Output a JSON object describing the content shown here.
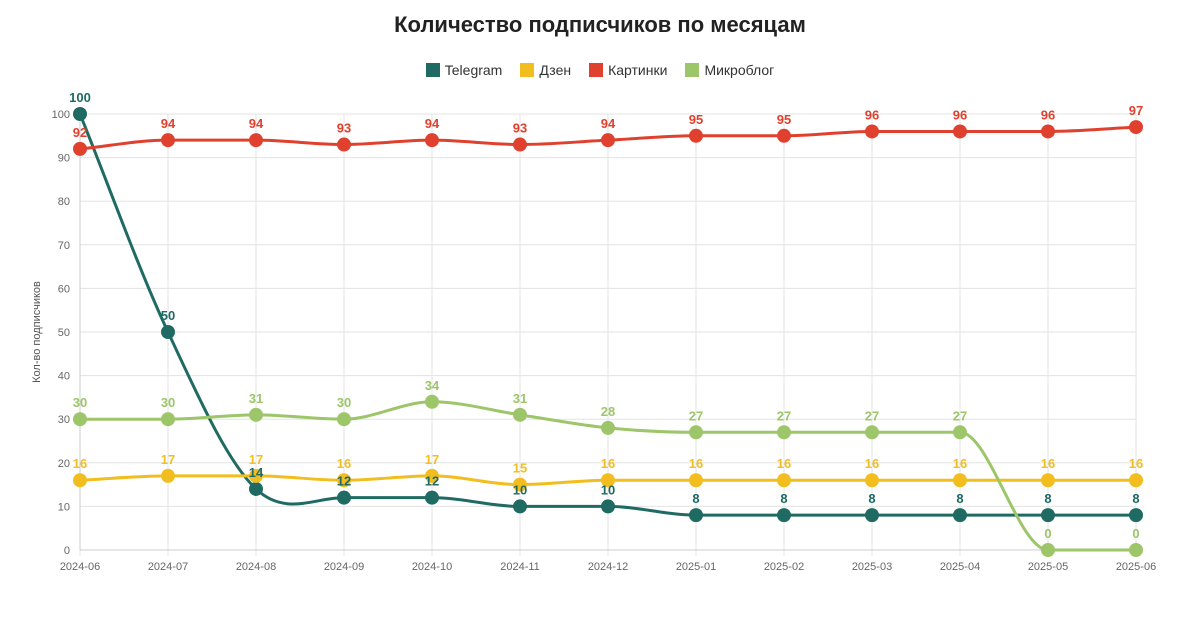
{
  "chart_data": {
    "type": "line",
    "title": "Количество подписчиков по месяцам",
    "ylabel": "Кол-во подписчиков",
    "xlabel": "",
    "ylim": [
      0,
      100
    ],
    "yticks": [
      0,
      10,
      20,
      30,
      40,
      50,
      60,
      70,
      80,
      90,
      100
    ],
    "categories": [
      "2024-06",
      "2024-07",
      "2024-08",
      "2024-09",
      "2024-10",
      "2024-11",
      "2024-12",
      "2025-01",
      "2025-02",
      "2025-03",
      "2025-04",
      "2025-05",
      "2025-06"
    ],
    "series": [
      {
        "name": "Telegram",
        "color": "#1f6b63",
        "values": [
          100,
          50,
          14,
          12,
          12,
          10,
          10,
          8,
          8,
          8,
          8,
          8,
          8
        ]
      },
      {
        "name": "Дзен",
        "color": "#f2be1f",
        "values": [
          16,
          17,
          17,
          16,
          17,
          15,
          16,
          16,
          16,
          16,
          16,
          16,
          16
        ]
      },
      {
        "name": "Картинки",
        "color": "#e0412f",
        "values": [
          92,
          94,
          94,
          93,
          94,
          93,
          94,
          95,
          95,
          96,
          96,
          96,
          97
        ]
      },
      {
        "name": "Микроблог",
        "color": "#9dc56a",
        "values": [
          30,
          30,
          31,
          30,
          34,
          31,
          28,
          27,
          27,
          27,
          27,
          0,
          0
        ]
      }
    ],
    "legend_position": "top-center",
    "grid": true
  }
}
